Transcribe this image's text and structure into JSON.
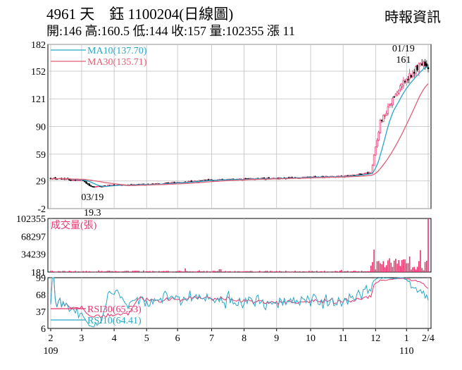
{
  "header": {
    "title": "4961 天　鈺 1100204(日線圖)",
    "source": "時報資訊",
    "quote": "開:146 高:160.5 低:144 收:157 量:102355 漲 11"
  },
  "colors": {
    "up": "#e8336d",
    "down": "#000000",
    "ma10": "#27a7c7",
    "ma30": "#e06075",
    "volume": "#e8336d",
    "rsi30": "#e8336d",
    "rsi10": "#27a7c7",
    "grid": "#bfbfbf"
  },
  "chart_data": [
    {
      "type": "candlestick",
      "name": "price",
      "y_ticks": [
        182,
        152,
        121,
        90,
        59,
        29,
        -2
      ],
      "ylim": [
        -2,
        182
      ],
      "legend": [
        {
          "label": "MA10(137.70)",
          "color": "#27a7c7"
        },
        {
          "label": "MA30(135.71)",
          "color": "#e06075"
        }
      ],
      "annotations": [
        {
          "date": "03/19",
          "value": "19.3",
          "position": "below"
        },
        {
          "date": "01/19",
          "value": "161",
          "position": "above"
        }
      ],
      "key_closes": [
        {
          "month": "2",
          "close": 32
        },
        {
          "month": "3",
          "close": 30
        },
        {
          "month": "3/19",
          "close": 22
        },
        {
          "month": "4",
          "close": 24
        },
        {
          "month": "5",
          "close": 25
        },
        {
          "month": "6",
          "close": 27
        },
        {
          "month": "7",
          "close": 30
        },
        {
          "month": "8",
          "close": 31
        },
        {
          "month": "9",
          "close": 32
        },
        {
          "month": "10",
          "close": 33
        },
        {
          "month": "11",
          "close": 34
        },
        {
          "month": "12",
          "close": 38
        },
        {
          "month": "12 late",
          "close": 95
        },
        {
          "month": "1",
          "close": 140
        },
        {
          "month": "01/19",
          "close": 161
        },
        {
          "month": "2/4",
          "close": 157
        }
      ]
    },
    {
      "type": "bar",
      "name": "volume",
      "title": "成交量(張)",
      "y_ticks": [
        102355,
        68297,
        34239,
        181
      ],
      "ylim": [
        181,
        102355
      ]
    },
    {
      "type": "line",
      "name": "rsi",
      "y_ticks": [
        99,
        68,
        37,
        6
      ],
      "ylim": [
        6,
        99
      ],
      "legend": [
        {
          "label": "RSI30(65.53)",
          "color": "#e8336d"
        },
        {
          "label": "RSI10(64.41)",
          "color": "#27a7c7"
        }
      ]
    }
  ],
  "x_axis": {
    "ticks": [
      "2",
      "3",
      "4",
      "5",
      "6",
      "7",
      "8",
      "9",
      "10",
      "11",
      "12",
      "1",
      "2/4"
    ],
    "year_labels": [
      {
        "label": "109",
        "at_tick": "2"
      },
      {
        "label": "110",
        "at_tick": "1"
      }
    ]
  }
}
